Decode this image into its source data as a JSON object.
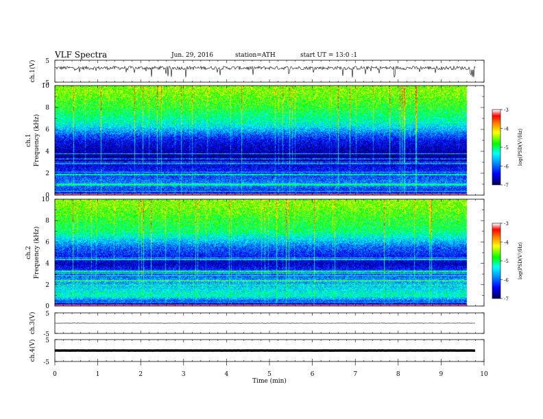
{
  "header": {
    "title": "VLF  Spectra",
    "date": "Jun. 29, 2016",
    "station": "station=ATH",
    "start": "start  UT  =   13:0  :1"
  },
  "x_axis": {
    "label": "Time  (min)",
    "ticks": [
      "0",
      "1",
      "2",
      "3",
      "4",
      "5",
      "6",
      "7",
      "8",
      "9",
      "10"
    ]
  },
  "panels": {
    "ch1_waveform": {
      "label": "ch.1(V)",
      "ticks": [
        "5",
        "-5"
      ]
    },
    "ch1_spectrogram": {
      "label_ch": "ch.1",
      "label_freq": "Frequency  (kHz)",
      "ticks": [
        "10",
        "8",
        "6",
        "4",
        "2",
        "0"
      ]
    },
    "ch2_spectrogram": {
      "label_ch": "ch.2",
      "label_freq": "Frequency  (kHz)",
      "ticks": [
        "10",
        "8",
        "6",
        "4",
        "2",
        "0"
      ]
    },
    "ch3_waveform": {
      "label": "ch.3(V)",
      "ticks": [
        "5",
        "-5"
      ]
    },
    "ch4_waveform": {
      "label": "ch.4(V)",
      "ticks": [
        "5",
        "-5"
      ]
    }
  },
  "colorbar": {
    "ticks": [
      "-3",
      "-4",
      "-5",
      "-6",
      "-7"
    ],
    "label": "log(PSD(V²/Hz)",
    "colors": [
      "#000066",
      "#0000ff",
      "#00ffff",
      "#00ff00",
      "#ffff00",
      "#ff8000",
      "#ff0000",
      "#ffffff"
    ]
  },
  "chart_data": {
    "type": "heatmap",
    "description_units": "time in minutes, frequency in kHz, PSD in log10(V^2/Hz)",
    "x_range": [
      0,
      10
    ],
    "data_end_minute": 9.8,
    "freq_range_khz": [
      0,
      10
    ],
    "psd_range": [
      -7,
      -3
    ],
    "waveform_voltage_range": [
      -5,
      5
    ],
    "ch1_psd_profile": [
      {
        "f_khz": 0.3,
        "psd": -6.3
      },
      {
        "f_khz": 1.0,
        "psd": -5.8
      },
      {
        "f_khz": 2.0,
        "psd": -6.2
      },
      {
        "f_khz": 3.5,
        "psd": -6.8
      },
      {
        "f_khz": 5.0,
        "psd": -6.4
      },
      {
        "f_khz": 6.5,
        "psd": -5.3
      },
      {
        "f_khz": 8.0,
        "psd": -4.8
      },
      {
        "f_khz": 9.5,
        "psd": -4.5
      }
    ],
    "ch2_psd_profile": [
      {
        "f_khz": 0.3,
        "psd": -6.4
      },
      {
        "f_khz": 1.0,
        "psd": -5.2
      },
      {
        "f_khz": 2.5,
        "psd": -5.8
      },
      {
        "f_khz": 4.0,
        "psd": -6.6
      },
      {
        "f_khz": 5.5,
        "psd": -6.0
      },
      {
        "f_khz": 7.0,
        "psd": -5.0
      },
      {
        "f_khz": 8.5,
        "psd": -4.7
      },
      {
        "f_khz": 9.5,
        "psd": -4.5
      }
    ],
    "ch1_mean_voltage": 1.5,
    "ch3_mean_voltage": 0.0,
    "ch4_mean_voltage": 0.0
  }
}
